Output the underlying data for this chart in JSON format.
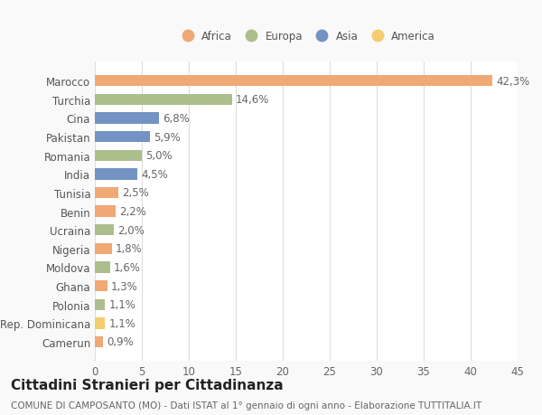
{
  "categories": [
    "Camerun",
    "Rep. Dominicana",
    "Polonia",
    "Ghana",
    "Moldova",
    "Nigeria",
    "Ucraina",
    "Benin",
    "Tunisia",
    "India",
    "Romania",
    "Pakistan",
    "Cina",
    "Turchia",
    "Marocco"
  ],
  "values": [
    0.9,
    1.1,
    1.1,
    1.3,
    1.6,
    1.8,
    2.0,
    2.2,
    2.5,
    4.5,
    5.0,
    5.9,
    6.8,
    14.6,
    42.3
  ],
  "labels": [
    "0,9%",
    "1,1%",
    "1,1%",
    "1,3%",
    "1,6%",
    "1,8%",
    "2,0%",
    "2,2%",
    "2,5%",
    "4,5%",
    "5,0%",
    "5,9%",
    "6,8%",
    "14,6%",
    "42,3%"
  ],
  "continents": [
    "Africa",
    "America",
    "Europa",
    "Africa",
    "Europa",
    "Africa",
    "Europa",
    "Africa",
    "Africa",
    "Asia",
    "Europa",
    "Asia",
    "Asia",
    "Europa",
    "Africa"
  ],
  "colors": {
    "Africa": "#F0A875",
    "Europa": "#ABBE8B",
    "Asia": "#7393C4",
    "America": "#F5CC6E"
  },
  "legend_order": [
    "Africa",
    "Europa",
    "Asia",
    "America"
  ],
  "title": "Cittadini Stranieri per Cittadinanza",
  "subtitle": "COMUNE DI CAMPOSANTO (MO) - Dati ISTAT al 1° gennaio di ogni anno - Elaborazione TUTTITALIA.IT",
  "xlim": [
    0,
    45
  ],
  "xticks": [
    0,
    5,
    10,
    15,
    20,
    25,
    30,
    35,
    40,
    45
  ],
  "background_color": "#f9f9f9",
  "bar_background": "#ffffff",
  "grid_color": "#dddddd",
  "label_fontsize": 8.5,
  "tick_fontsize": 8.5,
  "title_fontsize": 11,
  "subtitle_fontsize": 7.5
}
